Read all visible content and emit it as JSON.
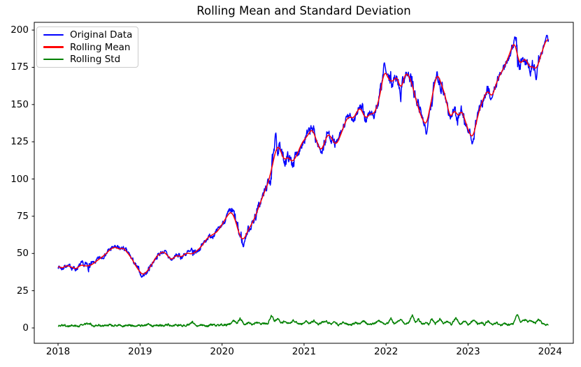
{
  "chart_data": {
    "type": "line",
    "title": "Rolling Mean and Standard Deviation",
    "xlabel": "",
    "ylabel": "",
    "grid": false,
    "background": "#ffffff",
    "axis_color": "#000000",
    "xlim": [
      2017.71,
      2024.283
    ],
    "ylim": [
      -10.3,
      205.2
    ],
    "x_ticks": [
      2018,
      2019,
      2020,
      2021,
      2022,
      2023,
      2024
    ],
    "y_ticks": [
      0,
      25,
      50,
      75,
      100,
      125,
      150,
      175,
      200
    ],
    "x_range": [
      2018.0,
      2023.98
    ],
    "noise_seed": 7,
    "legend": {
      "position": "upper-left"
    },
    "series": [
      {
        "name": "Original Data",
        "color": "#0000ff",
        "construction": "rolling_mean_plus_noise_scaled_by_rolling_std",
        "extremes": [
          [
            2019.02,
            34.0
          ],
          [
            2020.26,
            54.5
          ],
          [
            2020.655,
            131.0
          ],
          [
            2021.98,
            178.0
          ],
          [
            2022.49,
            130.0
          ],
          [
            2023.05,
            123.5
          ],
          [
            2023.57,
            195.5
          ],
          [
            2023.83,
            166.5
          ],
          [
            2023.96,
            196.5
          ]
        ]
      },
      {
        "name": "Rolling Mean",
        "color": "#ff0000",
        "keypoints": [
          [
            2018.0,
            41.5
          ],
          [
            2018.05,
            40.0
          ],
          [
            2018.1,
            42.0
          ],
          [
            2018.16,
            41.0
          ],
          [
            2018.22,
            39.5
          ],
          [
            2018.28,
            42.5
          ],
          [
            2018.33,
            41.5
          ],
          [
            2018.4,
            42.0
          ],
          [
            2018.46,
            44.5
          ],
          [
            2018.52,
            47.0
          ],
          [
            2018.58,
            49.5
          ],
          [
            2018.64,
            53.0
          ],
          [
            2018.7,
            54.5
          ],
          [
            2018.75,
            52.5
          ],
          [
            2018.79,
            54.0
          ],
          [
            2018.84,
            51.0
          ],
          [
            2018.9,
            46.5
          ],
          [
            2018.96,
            40.5
          ],
          [
            2019.03,
            35.5
          ],
          [
            2019.08,
            37.5
          ],
          [
            2019.13,
            41.5
          ],
          [
            2019.2,
            48.0
          ],
          [
            2019.28,
            51.5
          ],
          [
            2019.33,
            49.0
          ],
          [
            2019.38,
            45.5
          ],
          [
            2019.45,
            49.0
          ],
          [
            2019.5,
            47.5
          ],
          [
            2019.57,
            50.5
          ],
          [
            2019.63,
            49.5
          ],
          [
            2019.7,
            52.0
          ],
          [
            2019.76,
            55.5
          ],
          [
            2019.82,
            60.5
          ],
          [
            2019.88,
            62.5
          ],
          [
            2019.94,
            64.5
          ],
          [
            2020.0,
            69.5
          ],
          [
            2020.06,
            75.0
          ],
          [
            2020.11,
            78.5
          ],
          [
            2020.16,
            73.0
          ],
          [
            2020.21,
            62.5
          ],
          [
            2020.26,
            58.5
          ],
          [
            2020.32,
            66.0
          ],
          [
            2020.38,
            71.5
          ],
          [
            2020.44,
            80.0
          ],
          [
            2020.5,
            89.0
          ],
          [
            2020.56,
            97.0
          ],
          [
            2020.61,
            108.0
          ],
          [
            2020.66,
            121.0
          ],
          [
            2020.7,
            122.0
          ],
          [
            2020.75,
            112.5
          ],
          [
            2020.81,
            115.0
          ],
          [
            2020.85,
            111.0
          ],
          [
            2020.91,
            115.5
          ],
          [
            2020.97,
            124.0
          ],
          [
            2021.04,
            129.0
          ],
          [
            2021.1,
            134.0
          ],
          [
            2021.15,
            126.0
          ],
          [
            2021.2,
            118.5
          ],
          [
            2021.25,
            124.0
          ],
          [
            2021.29,
            131.0
          ],
          [
            2021.34,
            127.0
          ],
          [
            2021.39,
            122.5
          ],
          [
            2021.45,
            130.0
          ],
          [
            2021.51,
            139.5
          ],
          [
            2021.55,
            142.0
          ],
          [
            2021.6,
            140.5
          ],
          [
            2021.68,
            148.5
          ],
          [
            2021.75,
            140.5
          ],
          [
            2021.82,
            144.5
          ],
          [
            2021.85,
            143.0
          ],
          [
            2021.91,
            152.0
          ],
          [
            2021.98,
            173.5
          ],
          [
            2022.03,
            167.0
          ],
          [
            2022.08,
            165.0
          ],
          [
            2022.13,
            169.5
          ],
          [
            2022.18,
            159.5
          ],
          [
            2022.24,
            172.0
          ],
          [
            2022.3,
            167.0
          ],
          [
            2022.37,
            152.0
          ],
          [
            2022.43,
            141.5
          ],
          [
            2022.49,
            135.5
          ],
          [
            2022.55,
            152.0
          ],
          [
            2022.62,
            171.5
          ],
          [
            2022.68,
            163.0
          ],
          [
            2022.73,
            154.0
          ],
          [
            2022.78,
            140.5
          ],
          [
            2022.84,
            147.0
          ],
          [
            2022.88,
            141.0
          ],
          [
            2022.92,
            147.0
          ],
          [
            2022.97,
            138.0
          ],
          [
            2023.02,
            130.0
          ],
          [
            2023.06,
            127.5
          ],
          [
            2023.12,
            143.0
          ],
          [
            2023.17,
            152.0
          ],
          [
            2023.24,
            160.0
          ],
          [
            2023.29,
            154.5
          ],
          [
            2023.36,
            167.0
          ],
          [
            2023.42,
            173.0
          ],
          [
            2023.48,
            180.0
          ],
          [
            2023.53,
            188.0
          ],
          [
            2023.57,
            192.5
          ],
          [
            2023.62,
            177.5
          ],
          [
            2023.67,
            179.0
          ],
          [
            2023.7,
            181.5
          ],
          [
            2023.75,
            174.5
          ],
          [
            2023.79,
            176.0
          ],
          [
            2023.83,
            173.0
          ],
          [
            2023.87,
            180.0
          ],
          [
            2023.92,
            188.5
          ],
          [
            2023.96,
            194.5
          ],
          [
            2023.98,
            193.0
          ]
        ]
      },
      {
        "name": "Rolling Std",
        "color": "#008000",
        "keypoints": [
          [
            2018.0,
            1.2
          ],
          [
            2018.06,
            2.0
          ],
          [
            2018.12,
            1.0
          ],
          [
            2018.18,
            1.8
          ],
          [
            2018.24,
            1.2
          ],
          [
            2018.3,
            2.0
          ],
          [
            2018.38,
            3.2
          ],
          [
            2018.44,
            1.2
          ],
          [
            2018.5,
            1.8
          ],
          [
            2018.56,
            1.3
          ],
          [
            2018.62,
            2.0
          ],
          [
            2018.68,
            1.4
          ],
          [
            2018.74,
            1.9
          ],
          [
            2018.8,
            1.2
          ],
          [
            2018.86,
            2.2
          ],
          [
            2018.92,
            1.4
          ],
          [
            2018.98,
            1.9
          ],
          [
            2019.04,
            1.4
          ],
          [
            2019.1,
            2.6
          ],
          [
            2019.16,
            1.3
          ],
          [
            2019.22,
            2.0
          ],
          [
            2019.28,
            1.4
          ],
          [
            2019.34,
            2.4
          ],
          [
            2019.4,
            1.3
          ],
          [
            2019.46,
            1.9
          ],
          [
            2019.52,
            1.4
          ],
          [
            2019.58,
            2.2
          ],
          [
            2019.64,
            3.6
          ],
          [
            2019.7,
            1.5
          ],
          [
            2019.76,
            2.2
          ],
          [
            2019.82,
            1.4
          ],
          [
            2019.88,
            2.0
          ],
          [
            2019.94,
            1.5
          ],
          [
            2020.0,
            2.2
          ],
          [
            2020.05,
            1.8
          ],
          [
            2020.1,
            2.5
          ],
          [
            2020.14,
            5.2
          ],
          [
            2020.18,
            2.8
          ],
          [
            2020.22,
            6.2
          ],
          [
            2020.27,
            2.5
          ],
          [
            2020.32,
            3.5
          ],
          [
            2020.37,
            2.2
          ],
          [
            2020.42,
            4.0
          ],
          [
            2020.47,
            2.5
          ],
          [
            2020.52,
            3.2
          ],
          [
            2020.56,
            2.8
          ],
          [
            2020.6,
            8.6
          ],
          [
            2020.64,
            4.5
          ],
          [
            2020.68,
            6.2
          ],
          [
            2020.72,
            3.5
          ],
          [
            2020.77,
            4.5
          ],
          [
            2020.82,
            3.0
          ],
          [
            2020.87,
            4.8
          ],
          [
            2020.92,
            3.2
          ],
          [
            2020.97,
            2.5
          ],
          [
            2021.02,
            4.5
          ],
          [
            2021.07,
            3.0
          ],
          [
            2021.12,
            4.8
          ],
          [
            2021.17,
            2.5
          ],
          [
            2021.22,
            3.8
          ],
          [
            2021.27,
            4.5
          ],
          [
            2021.32,
            2.5
          ],
          [
            2021.37,
            3.8
          ],
          [
            2021.42,
            2.2
          ],
          [
            2021.47,
            3.5
          ],
          [
            2021.52,
            2.5
          ],
          [
            2021.57,
            2.2
          ],
          [
            2021.62,
            3.5
          ],
          [
            2021.67,
            2.5
          ],
          [
            2021.72,
            4.5
          ],
          [
            2021.77,
            3.0
          ],
          [
            2021.82,
            2.5
          ],
          [
            2021.87,
            3.5
          ],
          [
            2021.92,
            4.8
          ],
          [
            2021.97,
            2.8
          ],
          [
            2022.02,
            3.0
          ],
          [
            2022.06,
            7.0
          ],
          [
            2022.1,
            2.5
          ],
          [
            2022.14,
            4.5
          ],
          [
            2022.19,
            6.0
          ],
          [
            2022.23,
            2.5
          ],
          [
            2022.28,
            4.0
          ],
          [
            2022.32,
            8.4
          ],
          [
            2022.36,
            3.0
          ],
          [
            2022.39,
            6.0
          ],
          [
            2022.44,
            2.5
          ],
          [
            2022.49,
            3.7
          ],
          [
            2022.52,
            2.2
          ],
          [
            2022.56,
            6.0
          ],
          [
            2022.6,
            2.5
          ],
          [
            2022.66,
            6.0
          ],
          [
            2022.7,
            3.0
          ],
          [
            2022.75,
            4.7
          ],
          [
            2022.8,
            2.2
          ],
          [
            2022.85,
            7.0
          ],
          [
            2022.9,
            2.5
          ],
          [
            2022.96,
            4.7
          ],
          [
            2023.0,
            2.3
          ],
          [
            2023.07,
            5.2
          ],
          [
            2023.12,
            2.5
          ],
          [
            2023.17,
            3.7
          ],
          [
            2023.2,
            2.2
          ],
          [
            2023.24,
            4.7
          ],
          [
            2023.3,
            2.0
          ],
          [
            2023.35,
            3.3
          ],
          [
            2023.4,
            2.0
          ],
          [
            2023.45,
            3.0
          ],
          [
            2023.5,
            2.2
          ],
          [
            2023.55,
            3.0
          ],
          [
            2023.6,
            9.0
          ],
          [
            2023.64,
            4.0
          ],
          [
            2023.69,
            5.5
          ],
          [
            2023.73,
            4.3
          ],
          [
            2023.77,
            4.8
          ],
          [
            2023.82,
            2.8
          ],
          [
            2023.86,
            6.0
          ],
          [
            2023.91,
            2.8
          ],
          [
            2023.95,
            1.6
          ],
          [
            2023.98,
            2.2
          ]
        ]
      }
    ]
  }
}
